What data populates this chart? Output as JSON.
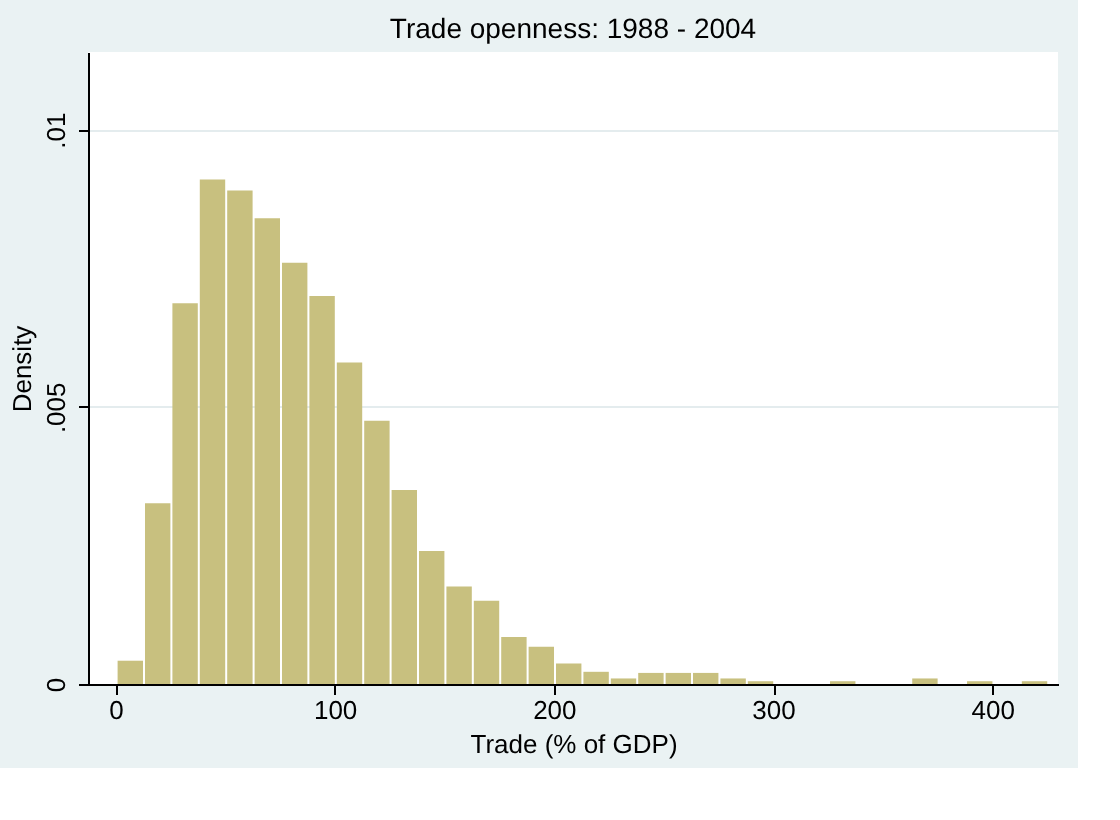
{
  "chart_data": {
    "type": "histogram",
    "title": "Trade openness: 1988 - 2004",
    "xlabel": "Trade (% of GDP)",
    "ylabel": "Density",
    "bins": [
      1,
      13.5,
      26,
      38.5,
      51,
      63.5,
      76,
      88.5,
      101,
      113.5,
      126,
      138.5,
      151,
      163.5,
      176,
      188.5,
      201,
      213.5,
      226,
      238.5,
      251,
      263.5,
      276,
      288.5,
      301,
      313.5,
      326,
      338.5,
      351,
      363.5,
      376,
      388.5,
      401,
      413.5,
      426
    ],
    "values": [
      0.00042,
      0.00326,
      0.00687,
      0.0091,
      0.0089,
      0.0084,
      0.0076,
      0.007,
      0.0058,
      0.00475,
      0.0035,
      0.0024,
      0.00176,
      0.0015,
      0.00085,
      0.00067,
      0.00037,
      0.00022,
      0.0001,
      0.0002,
      0.0002,
      0.0002,
      0.0001,
      5e-05,
      0,
      0,
      5e-05,
      0,
      0,
      0.0001,
      0,
      5e-05,
      0,
      5e-05
    ],
    "color": "#c8c07f",
    "xlim": [
      -12.5,
      430
    ],
    "xticks": [
      0,
      100,
      200,
      300,
      400
    ],
    "ylim": [
      0,
      0.0114
    ],
    "yticks": [
      {
        "value": 0,
        "label": "0"
      },
      {
        "value": 0.005,
        "label": ".005"
      },
      {
        "value": 0.01,
        "label": ".01"
      }
    ],
    "grid": "y"
  }
}
